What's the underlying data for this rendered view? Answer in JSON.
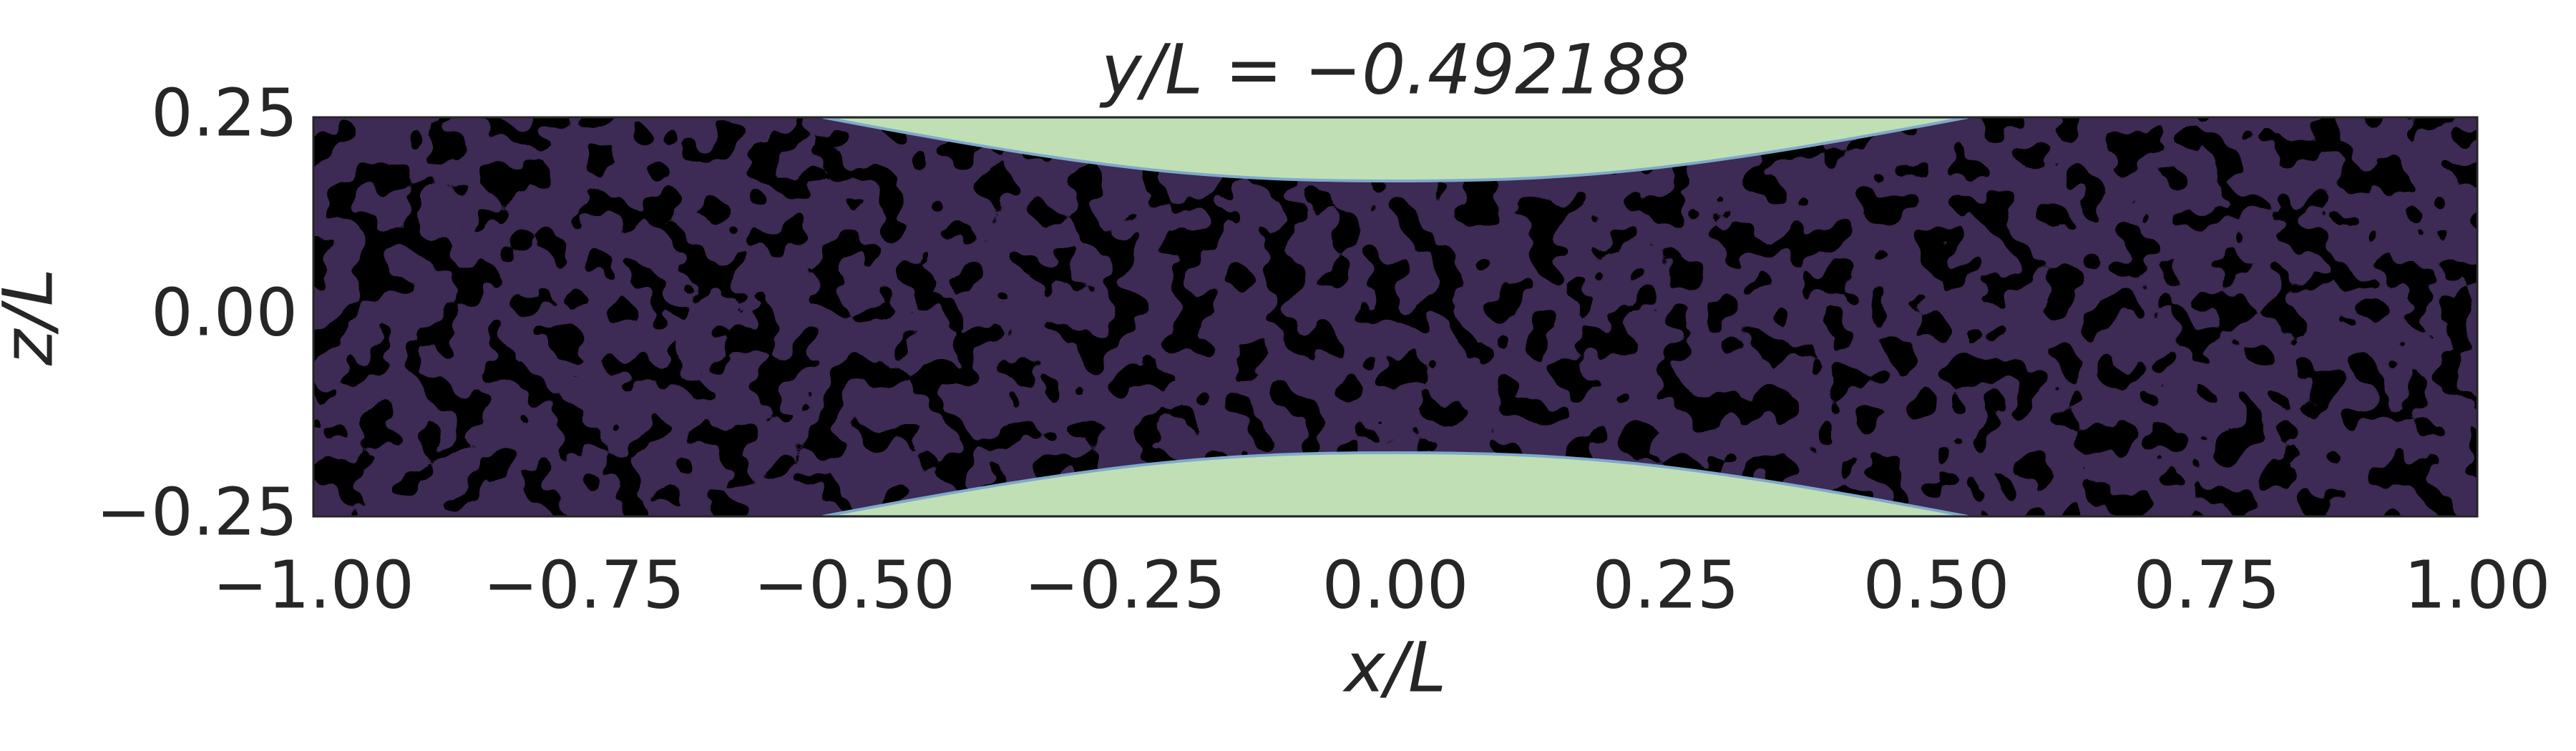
{
  "chart_data": {
    "type": "contour",
    "title": "y/L = −0.492188",
    "x_label": "x/L",
    "y_label": "z/L",
    "xlim": [
      -1,
      1
    ],
    "ylim": [
      -0.25,
      0.25
    ],
    "xticks": [
      {
        "value": -1,
        "label": "−1.00"
      },
      {
        "value": -0.75,
        "label": "−0.75"
      },
      {
        "value": -0.5,
        "label": "−0.50"
      },
      {
        "value": -0.25,
        "label": "−0.25"
      },
      {
        "value": 0,
        "label": "0.00"
      },
      0.25,
      {
        "value": 0.5,
        "label": "0.50"
      },
      0.75,
      {
        "value": 1,
        "label": "1.00"
      }
    ],
    "yticks": [
      {
        "value": -0.25,
        "label": "−0.25"
      },
      {
        "value": 0,
        "label": "0.00"
      },
      0.25
    ],
    "grid": false
  }
}
